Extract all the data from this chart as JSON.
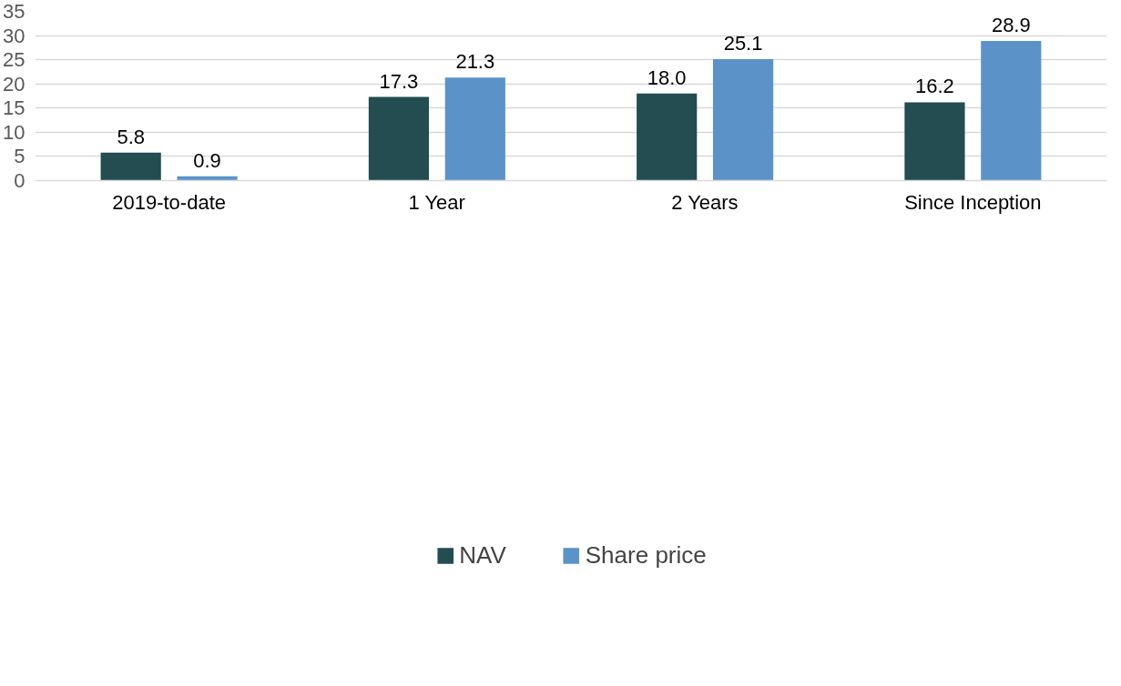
{
  "chart_data": {
    "type": "bar",
    "categories": [
      "2019-to-date",
      "1 Year",
      "2 Years",
      "Since Inception"
    ],
    "series": [
      {
        "name": "NAV",
        "color": "#234d50",
        "values": [
          5.8,
          17.3,
          18.0,
          16.2
        ],
        "value_labels": [
          "5.8",
          "17.3",
          "18.0",
          "16.2"
        ]
      },
      {
        "name": "Share price",
        "color": "#5b93c9",
        "values": [
          0.9,
          21.3,
          25.1,
          28.9
        ],
        "value_labels": [
          "0.9",
          "21.3",
          "25.1",
          "28.9"
        ]
      }
    ],
    "ylim": [
      0,
      35
    ],
    "yticks": [
      0,
      5,
      10,
      15,
      20,
      25,
      30,
      35
    ],
    "grid": "y",
    "legend": "bottom"
  }
}
